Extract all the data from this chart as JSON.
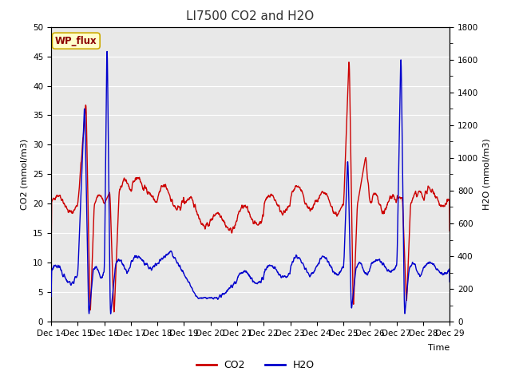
{
  "title": "LI7500 CO2 and H2O",
  "xlabel": "Time",
  "ylabel_left": "CO2 (mmol/m3)",
  "ylabel_right": "H2O (mmol/m3)",
  "ylim_left": [
    0,
    50
  ],
  "ylim_right": [
    0,
    1800
  ],
  "co2_color": "#cc0000",
  "h2o_color": "#0000cc",
  "figure_facecolor": "#ffffff",
  "axes_facecolor": "#e8e8e8",
  "annotation_text": "WP_flux",
  "annotation_facecolor": "#ffffcc",
  "annotation_edgecolor": "#ccaa00",
  "annotation_textcolor": "#8b0000",
  "x_tick_labels": [
    "Dec 14",
    "Dec 15",
    "Dec 16",
    "Dec 17",
    "Dec 18",
    "Dec 19",
    "Dec 20",
    "Dec 21",
    "Dec 22",
    "Dec 23",
    "Dec 24",
    "Dec 25",
    "Dec 26",
    "Dec 27",
    "Dec 28",
    "Dec 29"
  ],
  "legend_co2_label": "CO2",
  "legend_h2o_label": "H2O",
  "title_fontsize": 11,
  "label_fontsize": 8,
  "tick_fontsize": 7.5,
  "line_width": 1.0,
  "grid_color": "#ffffff",
  "yticks_left": [
    0,
    5,
    10,
    15,
    20,
    25,
    30,
    35,
    40,
    45,
    50
  ],
  "yticks_right": [
    0,
    200,
    400,
    600,
    800,
    1000,
    1200,
    1400,
    1600,
    1800
  ]
}
